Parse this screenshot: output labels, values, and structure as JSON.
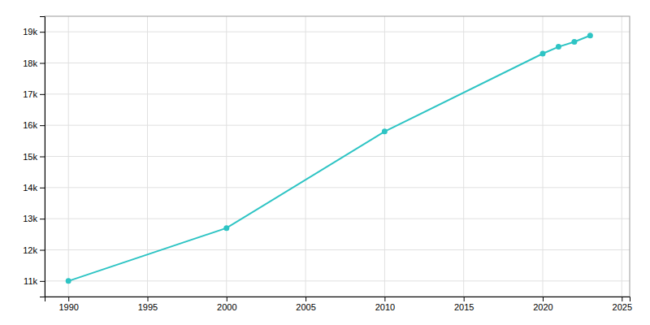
{
  "chart_data": {
    "type": "line",
    "x": [
      1990,
      2000,
      2010,
      2020,
      2021,
      2022,
      2023
    ],
    "values": [
      11000,
      12700,
      15800,
      18300,
      18520,
      18680,
      18880
    ],
    "color": "#2EC4C4",
    "marker": "circle",
    "xlim": [
      1988.5,
      2025.5
    ],
    "ylim": [
      10500,
      19500
    ],
    "xticks": [
      1990,
      1995,
      2000,
      2005,
      2010,
      2015,
      2020,
      2025
    ],
    "yticks": [
      {
        "value": 11000,
        "label": "11k"
      },
      {
        "value": 12000,
        "label": "12k"
      },
      {
        "value": 13000,
        "label": "13k"
      },
      {
        "value": 14000,
        "label": "14k"
      },
      {
        "value": 15000,
        "label": "15k"
      },
      {
        "value": 16000,
        "label": "16k"
      },
      {
        "value": 17000,
        "label": "17k"
      },
      {
        "value": 18000,
        "label": "18k"
      },
      {
        "value": 19000,
        "label": "19k"
      }
    ],
    "grid": true
  }
}
